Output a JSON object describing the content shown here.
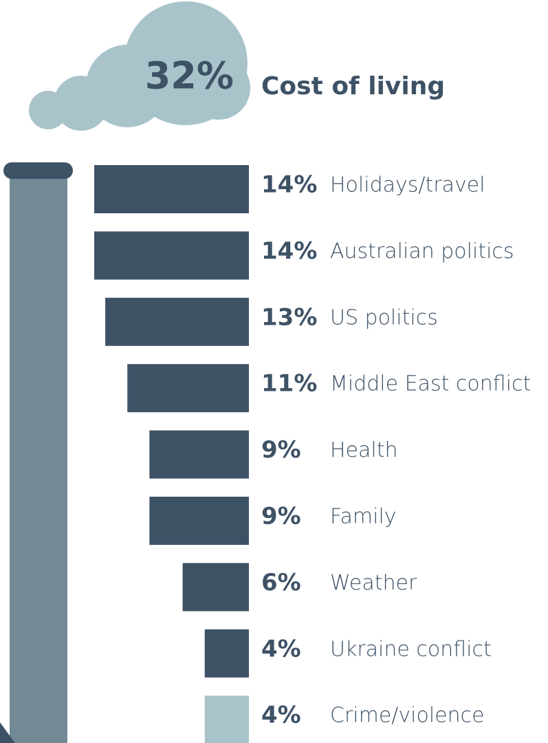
{
  "chart_data": {
    "type": "bar",
    "highlight": {
      "value": 32,
      "value_label": "32%",
      "label": "Cost of living",
      "color": "#a9c3cb"
    },
    "categories": [
      "Holidays/travel",
      "Australian politics",
      "US politics",
      "Middle East conflict",
      "Health",
      "Family",
      "Weather",
      "Ukraine conflict",
      "Crime/violence"
    ],
    "values": [
      14,
      14,
      13,
      11,
      9,
      9,
      6,
      4,
      4
    ],
    "value_labels": [
      "14%",
      "14%",
      "13%",
      "11%",
      "9%",
      "9%",
      "6%",
      "4%",
      "4%"
    ],
    "colors": [
      "#3e5266",
      "#3e5266",
      "#3e5266",
      "#3e5266",
      "#3e5266",
      "#3e5266",
      "#3e5266",
      "#3e5266",
      "#a9c3cb"
    ]
  }
}
